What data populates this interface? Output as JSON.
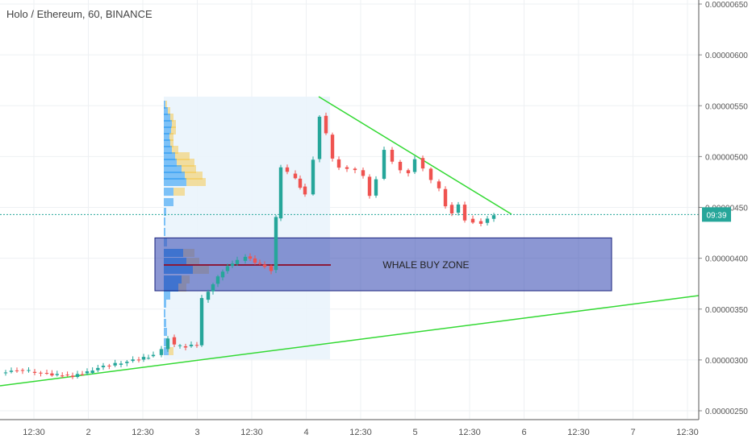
{
  "chart_data": {
    "type": "candlestick",
    "title": "Holo / Ethereum, 60, BINANCE",
    "y_axis_labels": [
      "0.00000650",
      "0.00000600",
      "0.00000550",
      "0.00000500",
      "0.00000450",
      "0.00000400",
      "0.00000350",
      "0.00000300",
      "0.00000250"
    ],
    "ylim": [
      2.5e-06,
      6.5e-06
    ],
    "current_price": 4.43e-06,
    "price_tag_label": "09:39",
    "x_ticks": [
      "12:30",
      "2",
      "12:30",
      "3",
      "12:30",
      "4",
      "12:30",
      "5",
      "12:30",
      "6",
      "12:30",
      "7",
      "12:30"
    ],
    "annotation": "WHALE BUY ZONE",
    "whale_zone": {
      "price_high": 4.2e-06,
      "price_low": 3.68e-06
    },
    "colors": {
      "up": "#26a69a",
      "down": "#ef5350",
      "trendline": "#33d933",
      "zone_fill": "#3f51b5",
      "zone_border": "#1a237e",
      "poc_line": "#8b1a3a",
      "price_line": "#26a69a",
      "volume_up": "#2196f3",
      "volume_down": "#f5c542"
    }
  }
}
